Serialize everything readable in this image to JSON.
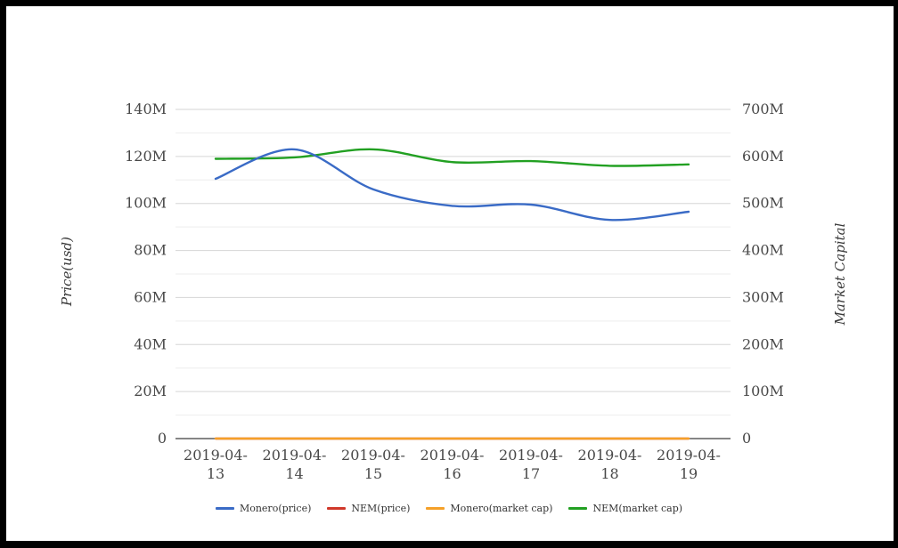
{
  "chart_data": {
    "type": "line",
    "title": "",
    "x": [
      "2019-04-13",
      "2019-04-14",
      "2019-04-15",
      "2019-04-16",
      "2019-04-17",
      "2019-04-18",
      "2019-04-19"
    ],
    "left_axis": {
      "title": "Price(usd)",
      "ticks": [
        "0",
        "20M",
        "40M",
        "60M",
        "80M",
        "100M",
        "120M",
        "140M"
      ],
      "min": 0,
      "max": 140,
      "tick_step": 20
    },
    "right_axis": {
      "title": "Market Capital",
      "ticks": [
        "0",
        "100M",
        "200M",
        "300M",
        "400M",
        "500M",
        "600M",
        "700M"
      ],
      "min": 0,
      "max": 700,
      "tick_step": 100
    },
    "series": [
      {
        "name": "Monero(price)",
        "color": "#3a6bc6",
        "axis": "left",
        "values": [
          110.5,
          123,
          106,
          99,
          99.5,
          93,
          96.5
        ]
      },
      {
        "name": "NEM(price)",
        "color": "#d0382a",
        "axis": "left",
        "values": [
          0,
          0,
          0,
          0,
          0,
          0,
          0
        ]
      },
      {
        "name": "Monero(market cap)",
        "color": "#f5a028",
        "axis": "right",
        "values": [
          0,
          0,
          0,
          0,
          0,
          0,
          0
        ]
      },
      {
        "name": "NEM(market cap)",
        "color": "#22a022",
        "axis": "right",
        "values": [
          595,
          598,
          615,
          588,
          590,
          580,
          583
        ]
      }
    ],
    "legend_position": "bottom",
    "grid": true,
    "colors": {
      "major_gridline": "#d6d6d6",
      "minor_gridline": "#ededed",
      "axis_baseline": "#3d3d3d",
      "tick_text": "#484848"
    }
  }
}
